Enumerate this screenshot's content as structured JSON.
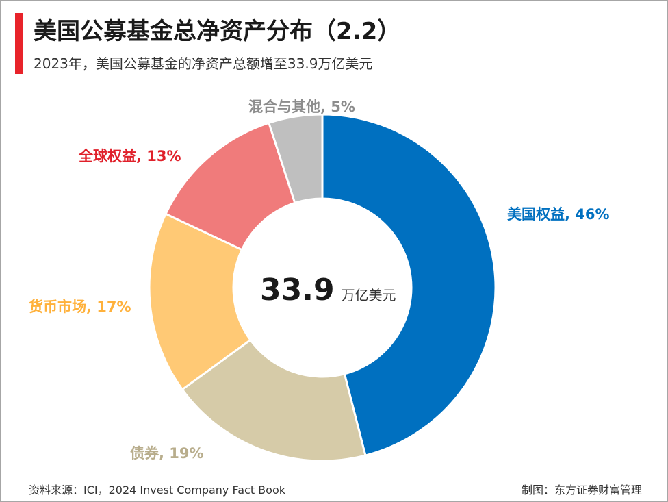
{
  "header": {
    "title": "美国公募基金总净资产分布（2.2）",
    "subtitle": "2023年，美国公募基金的净资产总额增至33.9万亿美元"
  },
  "chart_data": {
    "type": "pie",
    "variant": "donut",
    "title": "美国公募基金总净资产分布（2.2）",
    "center_value": "33.9",
    "center_unit": "万亿美元",
    "slices": [
      {
        "name": "美国权益",
        "value": 46,
        "label": "美国权益, 46%",
        "color": "#0070c0"
      },
      {
        "name": "债券",
        "value": 19,
        "label": "债券, 19%",
        "color": "#d6cba8"
      },
      {
        "name": "货币市场",
        "value": 17,
        "label": "货币市场, 17%",
        "color": "#ffc975"
      },
      {
        "name": "全球权益",
        "value": 13,
        "label": "全球权益, 13%",
        "color": "#f07b7b"
      },
      {
        "name": "混合与其他",
        "value": 5,
        "label": "混合与其他, 5%",
        "color": "#bfbfbf"
      }
    ],
    "label_colors": [
      "#0070c0",
      "#b8ad8c",
      "#ffb13b",
      "#e0202a",
      "#8c8c8c"
    ],
    "legend": "none"
  },
  "footer": {
    "source": "资料来源：ICI，2024 Invest Company Fact Book",
    "credit": "制图：东方证券财富管理"
  }
}
